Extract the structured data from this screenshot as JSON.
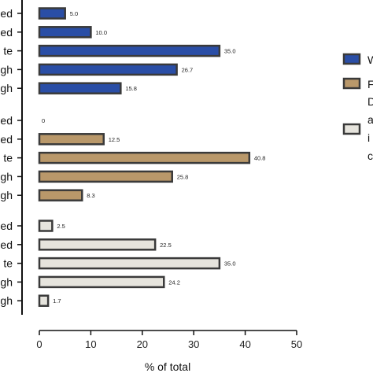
{
  "chart_data": {
    "type": "bar",
    "orientation": "horizontal",
    "xlabel": "% of total",
    "xlim": [
      0,
      50
    ],
    "xticks": [
      0,
      10,
      20,
      30,
      40,
      50
    ],
    "grid": false,
    "legend_position": "right",
    "groups": [
      {
        "color": "#2a4ea6",
        "legend_label": "W",
        "categories": [
          "ed",
          "ed",
          "te",
          "gh",
          "gh"
        ],
        "values": [
          5.0,
          10.0,
          35.0,
          26.7,
          15.8
        ],
        "value_labels": [
          "5.0",
          "10.0",
          "35.0",
          "26.7",
          "15.8"
        ]
      },
      {
        "color": "#b9986a",
        "legend_label": "F",
        "categories": [
          "ed",
          "ed",
          "te",
          "gh",
          "gh"
        ],
        "values": [
          0,
          12.5,
          40.8,
          25.8,
          8.3
        ],
        "value_labels": [
          "0",
          "12.5",
          "40.8",
          "25.8",
          "8.3"
        ]
      },
      {
        "color": "#e6e4dd",
        "legend_label": "D\na\ni\nc",
        "categories": [
          "ed",
          "ed",
          "te",
          "gh",
          "gh"
        ],
        "values": [
          2.5,
          22.5,
          35.0,
          24.2,
          1.7
        ],
        "value_labels": [
          "2.5",
          "22.5",
          "35.0",
          "24.2",
          "1.7"
        ]
      }
    ]
  }
}
